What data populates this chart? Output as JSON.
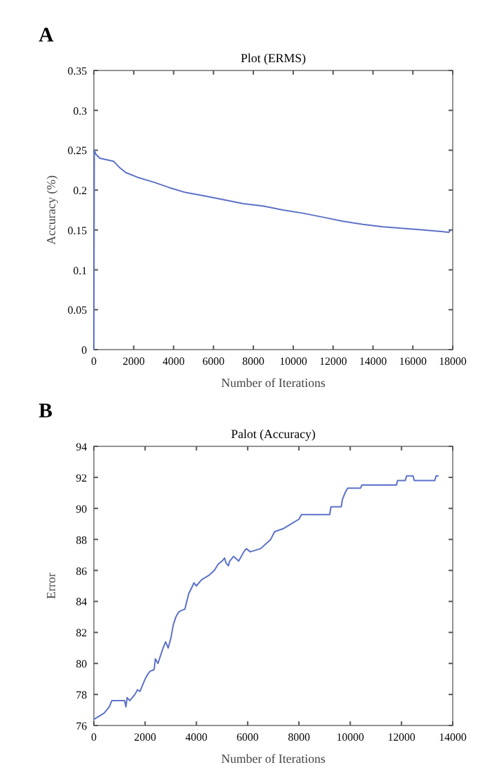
{
  "chart_data": [
    {
      "type": "line",
      "title": "Plot (ERMS)",
      "xlabel": "Number of Iterations",
      "ylabel": "Accuracy (%)",
      "annotations": [
        "A"
      ],
      "xlim": [
        0,
        18000
      ],
      "xticks": [
        0,
        2000,
        4000,
        6000,
        8000,
        10000,
        12000,
        14000,
        16000,
        18000
      ],
      "ylim": [
        0,
        0.35
      ],
      "yticks": [
        0,
        0.05,
        0.1,
        0.15,
        0.2,
        0.25,
        0.3,
        0.35
      ],
      "grid": false,
      "series": [
        {
          "color": "#5b70c8",
          "x": [
            0,
            20,
            100,
            300,
            1000,
            1300,
            1600,
            2200,
            3000,
            3800,
            4600,
            5500,
            6500,
            7500,
            8500,
            9500,
            10500,
            11500,
            12500,
            13500,
            14500,
            15500,
            16500,
            17500,
            17800,
            17900
          ],
          "values": [
            0,
            0.25,
            0.245,
            0.24,
            0.236,
            0.228,
            0.222,
            0.216,
            0.21,
            0.203,
            0.197,
            0.193,
            0.188,
            0.183,
            0.18,
            0.175,
            0.171,
            0.166,
            0.161,
            0.157,
            0.154,
            0.152,
            0.15,
            0.148,
            0.147,
            0.15
          ]
        }
      ]
    },
    {
      "type": "line",
      "title": "Palot (Accuracy)",
      "xlabel": "Number of Iterations",
      "ylabel": "Error",
      "annotations": [
        "B"
      ],
      "xlim": [
        0,
        14000
      ],
      "xticks": [
        0,
        2000,
        4000,
        6000,
        8000,
        10000,
        12000,
        14000
      ],
      "ylim": [
        76,
        94
      ],
      "yticks": [
        76,
        78,
        80,
        82,
        84,
        86,
        88,
        90,
        92,
        94
      ],
      "grid": false,
      "series": [
        {
          "color": "#5b70c8",
          "x": [
            0,
            200,
            400,
            600,
            700,
            1200,
            1250,
            1300,
            1400,
            1500,
            1600,
            1700,
            1800,
            1900,
            2000,
            2100,
            2200,
            2350,
            2400,
            2500,
            2600,
            2700,
            2800,
            2900,
            3000,
            3100,
            3200,
            3300,
            3400,
            3550,
            3700,
            3850,
            3900,
            4000,
            4200,
            4500,
            4700,
            4850,
            5000,
            5100,
            5150,
            5250,
            5300,
            5450,
            5650,
            5850,
            5950,
            6100,
            6500,
            6700,
            6900,
            7050,
            7400,
            7700,
            8000,
            8100,
            9200,
            9250,
            9650,
            9700,
            9800,
            9900,
            10400,
            10450,
            11800,
            11850,
            12150,
            12200,
            12450,
            12500,
            13300,
            13350,
            13450
          ],
          "values": [
            76.4,
            76.6,
            76.8,
            77.2,
            77.6,
            77.6,
            77.2,
            77.8,
            77.6,
            77.8,
            78,
            78.3,
            78.2,
            78.6,
            79,
            79.3,
            79.5,
            79.6,
            80.3,
            80,
            80.5,
            81,
            81.4,
            81,
            81.6,
            82.5,
            83,
            83.3,
            83.4,
            83.5,
            84.5,
            85,
            85.2,
            85,
            85.4,
            85.7,
            86,
            86.4,
            86.6,
            86.8,
            86.5,
            86.3,
            86.6,
            86.9,
            86.6,
            87.2,
            87.4,
            87.2,
            87.4,
            87.7,
            88,
            88.5,
            88.7,
            89,
            89.3,
            89.6,
            89.6,
            90.1,
            90.1,
            90.6,
            91,
            91.3,
            91.3,
            91.5,
            91.5,
            91.8,
            91.8,
            92.1,
            92.1,
            91.8,
            91.8,
            92.1,
            92.1
          ]
        }
      ]
    }
  ]
}
